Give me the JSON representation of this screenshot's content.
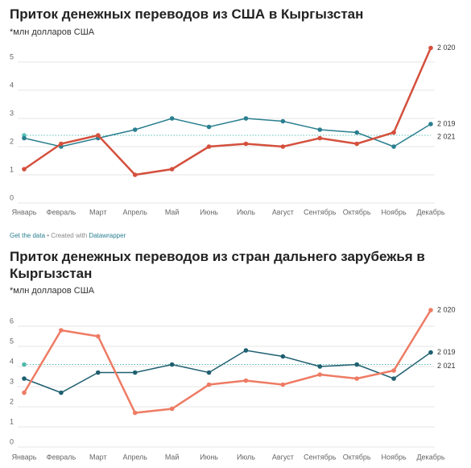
{
  "chart_data": [
    {
      "type": "line",
      "title": "Приток денежных переводов из США в Кыргызстан",
      "subtitle": "*млн долларов США",
      "categories": [
        "Январь",
        "Февраль",
        "Март",
        "Апрель",
        "Май",
        "Июнь",
        "Июль",
        "Август",
        "Сентябрь",
        "Октябрь",
        "Ноябрь",
        "Декабрь"
      ],
      "ylim": [
        0,
        5.6
      ],
      "yticks": [
        0,
        1,
        2,
        3,
        4,
        5
      ],
      "grid": true,
      "series": [
        {
          "name": "2 019",
          "color": "#2a7f8f",
          "values": [
            2.3,
            2.0,
            2.3,
            2.6,
            3.0,
            2.7,
            3.0,
            2.9,
            2.6,
            2.5,
            2.0,
            2.8
          ]
        },
        {
          "name": "2 020",
          "color": "#d4503d",
          "values": [
            1.2,
            2.1,
            2.4,
            1.0,
            1.2,
            2.0,
            2.1,
            2.0,
            2.3,
            2.1,
            2.5,
            5.5
          ]
        },
        {
          "name": "2 021",
          "color": "#59c2b5",
          "values": [
            2.4,
            null,
            null,
            null,
            null,
            null,
            null,
            null,
            null,
            null,
            null,
            null
          ]
        }
      ]
    },
    {
      "type": "line",
      "title": "Приток денежных переводов из стран дальнего зарубежья в Кыргызстан",
      "subtitle": "*млн долларов США",
      "categories": [
        "Январь",
        "Февраль",
        "Март",
        "Апрель",
        "Май",
        "Июнь",
        "Июль",
        "Август",
        "Сентябрь",
        "Октябрь",
        "Ноябрь",
        "Декабрь"
      ],
      "ylim": [
        0,
        7.0
      ],
      "yticks": [
        0,
        1,
        2,
        3,
        4,
        5,
        6
      ],
      "grid": true,
      "series": [
        {
          "name": "2 019",
          "color": "#1f5f70",
          "values": [
            3.4,
            2.7,
            3.7,
            3.7,
            4.1,
            3.7,
            4.8,
            4.5,
            4.0,
            4.1,
            3.4,
            4.7
          ]
        },
        {
          "name": "2 020",
          "color": "#ee7b64",
          "values": [
            2.7,
            5.8,
            5.5,
            1.7,
            1.9,
            3.1,
            3.3,
            3.1,
            3.6,
            3.4,
            3.8,
            6.8
          ]
        },
        {
          "name": "2 021",
          "color": "#4fb8ac",
          "values": [
            4.1,
            null,
            null,
            null,
            null,
            null,
            null,
            null,
            null,
            null,
            null,
            null
          ]
        }
      ]
    }
  ],
  "footer": {
    "data_link": "Get the data",
    "credit": "• Created with",
    "brand": "Datawrapper"
  }
}
